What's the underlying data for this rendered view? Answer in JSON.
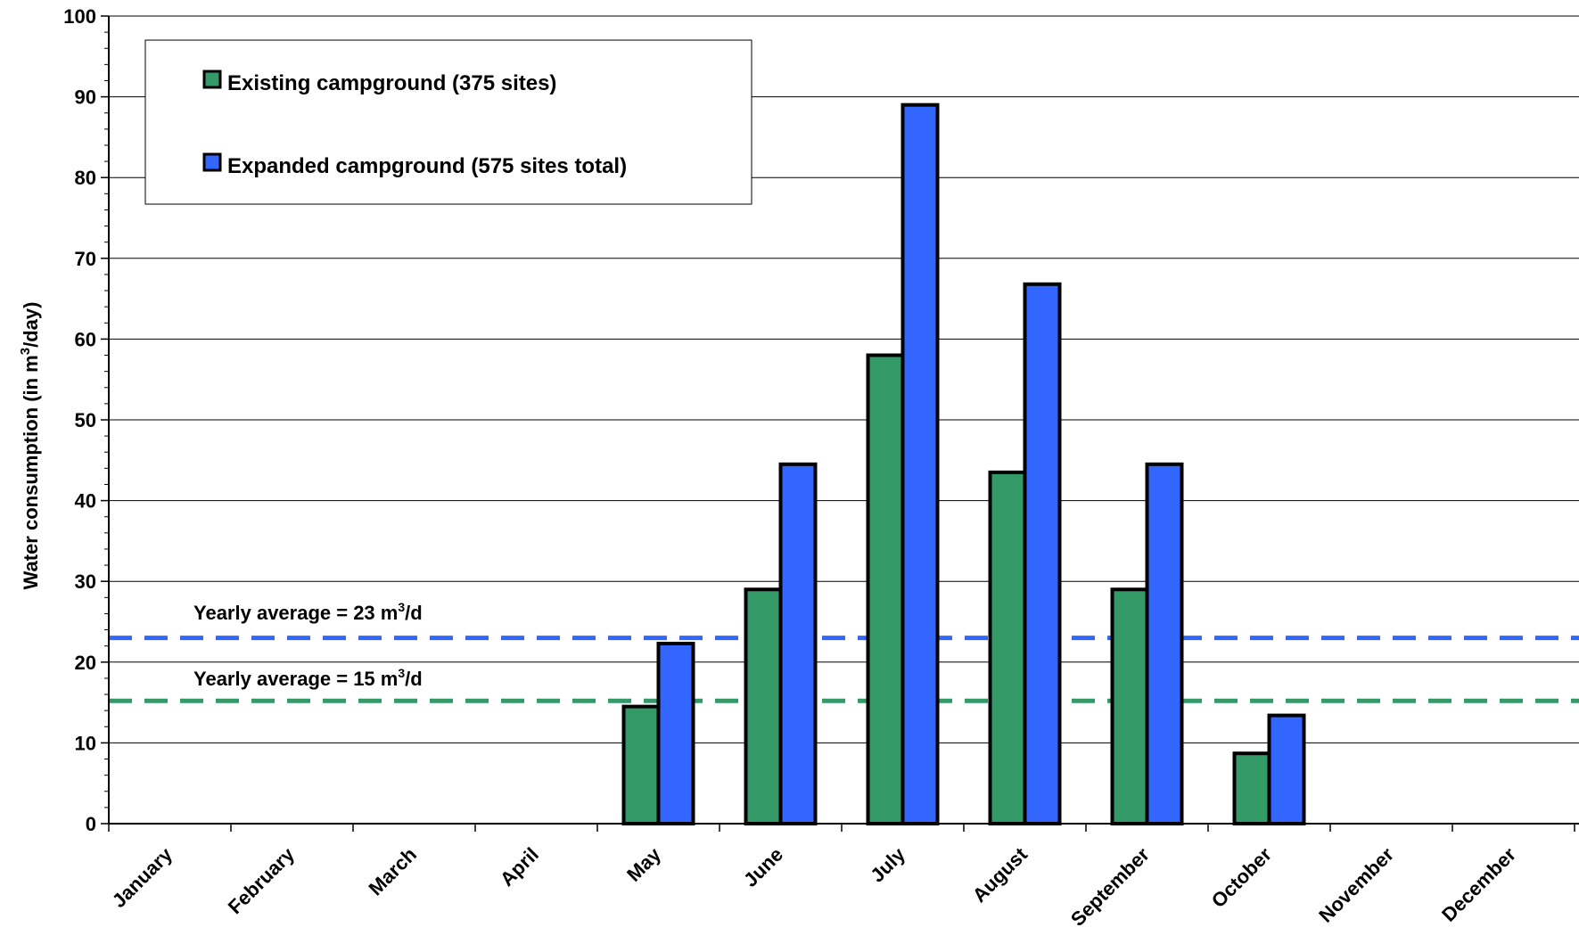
{
  "chart_data": {
    "type": "bar",
    "title": "",
    "ylabel": {
      "pre": "Water consumption (in m",
      "sup": "3",
      "post": "/day)"
    },
    "xlabel": "",
    "ylim": [
      0,
      100
    ],
    "yticks": [
      "0",
      "10",
      "20",
      "30",
      "40",
      "50",
      "60",
      "70",
      "80",
      "90",
      "100"
    ],
    "grid": true,
    "legend_position": "top-left",
    "categories": [
      "January",
      "February",
      "March",
      "April",
      "May",
      "June",
      "July",
      "August",
      "September",
      "October",
      "November",
      "December"
    ],
    "series": [
      {
        "name": "Existing campground (375 sites)",
        "color": "#339966",
        "values": [
          0,
          0,
          0,
          0,
          14.5,
          29,
          58,
          43.5,
          29,
          8.7,
          0,
          0
        ]
      },
      {
        "name": "Expanded campground (575 sites total)",
        "color": "#3366ff",
        "values": [
          0,
          0,
          0,
          0,
          22.3,
          44.5,
          89,
          66.8,
          44.5,
          13.4,
          0,
          0
        ]
      }
    ],
    "reference_lines": [
      {
        "value": 23,
        "color": "#3366ff",
        "style": "dashed",
        "label": {
          "pre": "Yearly average = 23 m",
          "sup": "3",
          "post": "/d"
        }
      },
      {
        "value": 15.2,
        "color": "#339966",
        "style": "dashed",
        "label": {
          "pre": "Yearly average = 15 m",
          "sup": "3",
          "post": "/d"
        }
      }
    ]
  }
}
